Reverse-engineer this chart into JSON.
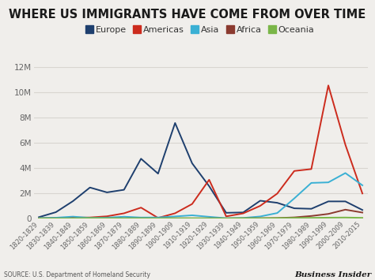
{
  "title": "WHERE US IMMIGRANTS HAVE COME FROM OVER TIME",
  "source": "SOURCE: U.S. Department of Homeland Security",
  "watermark": "Business Insider",
  "categories": [
    "1820-1829",
    "1830-1839",
    "1840-1849",
    "1850-1859",
    "1860-1869",
    "1870-1879",
    "1880-1889",
    "1890-1899",
    "1900-1909",
    "1910-1919",
    "1920-1929",
    "1930-1939",
    "1940-1949",
    "1950-1959",
    "1960-1969",
    "1970-1979",
    "1980-1989",
    "1990-1999",
    "2000-2009",
    "2010-2015"
  ],
  "series": {
    "Europe": {
      "color": "#1e3f6e",
      "values": [
        98,
        495,
        1369,
        2452,
        2065,
        2272,
        4737,
        3555,
        7572,
        4376,
        2560,
        444,
        473,
        1404,
        1238,
        801,
        762,
        1349,
        1349,
        669
      ]
    },
    "Americas": {
      "color": "#cc2b1d",
      "values": [
        11,
        33,
        62,
        75,
        166,
        404,
        857,
        38,
        408,
        1143,
        3066,
        160,
        398,
        997,
        1971,
        3764,
        3916,
        10552,
        5847,
        1978
      ]
    },
    "Asia": {
      "color": "#3ab0d4",
      "values": [
        30,
        55,
        141,
        41,
        64,
        134,
        69,
        75,
        157,
        247,
        126,
        16,
        37,
        153,
        427,
        1588,
        2817,
        2860,
        3600,
        2627
      ]
    },
    "Africa": {
      "color": "#8b3a2f",
      "values": [
        1,
        1,
        1,
        1,
        1,
        1,
        1,
        1,
        7,
        1,
        6,
        2,
        7,
        14,
        29,
        81,
        192,
        356,
        695,
        464
      ]
    },
    "Oceania": {
      "color": "#7ab648",
      "values": [
        1,
        1,
        1,
        29,
        9,
        10,
        12,
        3,
        13,
        13,
        8,
        2,
        14,
        12,
        25,
        41,
        45,
        60,
        70,
        45
      ]
    }
  },
  "ylim": [
    0,
    12000
  ],
  "yticks": [
    0,
    2000,
    4000,
    6000,
    8000,
    10000,
    12000
  ],
  "ytick_labels": [
    "0",
    "2M",
    "4M",
    "6M",
    "8M",
    "10M",
    "12M"
  ],
  "background_color": "#f0eeeb",
  "plot_bg_color": "#f0eeeb",
  "grid_color": "#d8d5d0",
  "title_fontsize": 10.5,
  "legend_fontsize": 8,
  "tick_fontsize": 6,
  "ytick_fontsize": 7.5
}
